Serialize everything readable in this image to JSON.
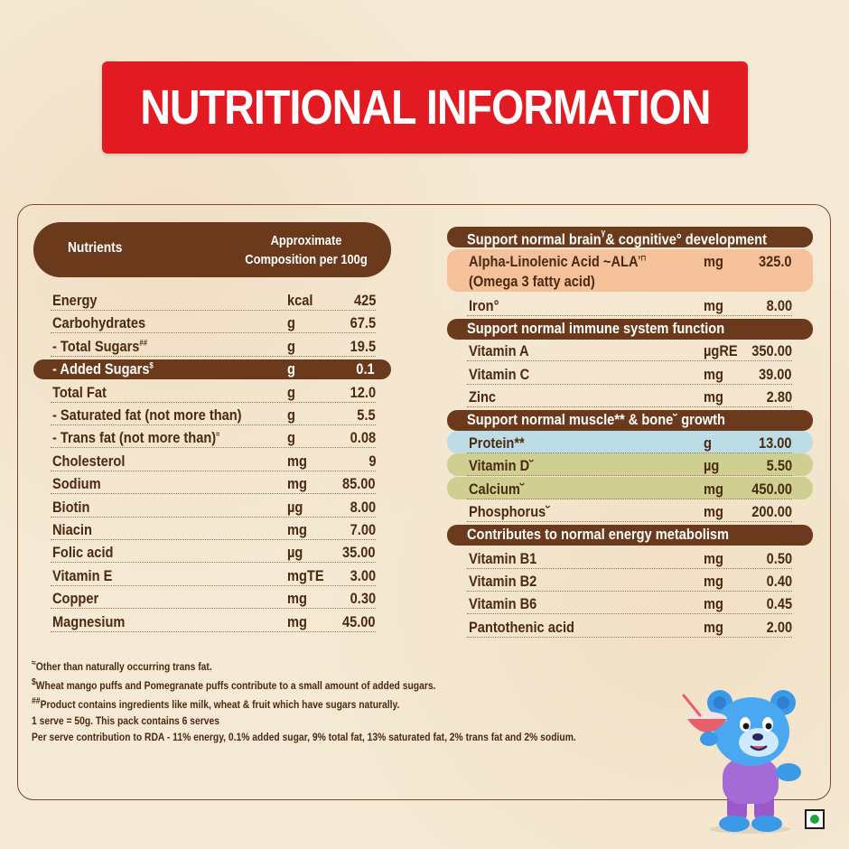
{
  "title": "NUTRITIONAL INFORMATION",
  "left_table": {
    "header_nutrients": "Nutrients",
    "header_comp_line1": "Approximate",
    "header_comp_line2": "Composition per 100g",
    "rows": [
      {
        "name": "Energy",
        "unit": "kcal",
        "value": "425"
      },
      {
        "name": "Carbohydrates",
        "unit": "g",
        "value": "67.5"
      },
      {
        "name": "- Total Sugars",
        "sup": "##",
        "unit": "g",
        "value": "19.5"
      },
      {
        "name": "- Added Sugars",
        "sup": "$",
        "unit": "g",
        "value": "0.1"
      },
      {
        "name": "Total Fat",
        "unit": "g",
        "value": "12.0"
      },
      {
        "name": "- Saturated fat (not more than)",
        "unit": "g",
        "value": "5.5"
      },
      {
        "name": "- Trans fat (not more than)",
        "sup": "≈",
        "unit": "g",
        "value": "0.08"
      },
      {
        "name": "Cholesterol",
        "unit": "mg",
        "value": "9"
      },
      {
        "name": "Sodium",
        "unit": "mg",
        "value": "85.00"
      },
      {
        "name": "Biotin",
        "unit": "µg",
        "value": "8.00"
      },
      {
        "name": "Niacin",
        "unit": "mg",
        "value": "7.00"
      },
      {
        "name": "Folic acid",
        "unit": "µg",
        "value": "35.00"
      },
      {
        "name": "Vitamin E",
        "unit": "mgTE",
        "value": "3.00"
      },
      {
        "name": "Copper",
        "unit": "mg",
        "value": "0.30"
      },
      {
        "name": "Magnesium",
        "unit": "mg",
        "value": "45.00"
      }
    ]
  },
  "right_table": {
    "sections": [
      {
        "header": "Support normal brain",
        "header_sup": "ᵞ",
        "header_rest": "& cognitive° development",
        "rows": [
          {
            "name": "Alpha-Linolenic Acid ~ALA",
            "sup": "ᵞ⊓",
            "name2": "(Omega 3 fatty acid)",
            "unit": "mg",
            "value": "325.0"
          },
          {
            "name": "Iron°",
            "unit": "mg",
            "value": "8.00"
          }
        ]
      },
      {
        "header": "Support normal immune system function",
        "rows": [
          {
            "name": "Vitamin A",
            "unit": "µgRE",
            "value": "350.00"
          },
          {
            "name": "Vitamin C",
            "unit": "mg",
            "value": "39.00"
          },
          {
            "name": "Zinc",
            "unit": "mg",
            "value": "2.80"
          }
        ]
      },
      {
        "header": "Support normal muscle** & bone˘ growth",
        "rows": [
          {
            "name": "Protein**",
            "unit": "g",
            "value": "13.00"
          },
          {
            "name": "Vitamin D˘",
            "unit": "µg",
            "value": "5.50"
          },
          {
            "name": "Calcium˘",
            "unit": "mg",
            "value": "450.00"
          },
          {
            "name": "Phosphorus˘",
            "unit": "mg",
            "value": "200.00"
          }
        ]
      },
      {
        "header": "Contributes to normal energy metabolism",
        "rows": [
          {
            "name": "Vitamin B1",
            "unit": "mg",
            "value": "0.50"
          },
          {
            "name": "Vitamin B2",
            "unit": "mg",
            "value": "0.40"
          },
          {
            "name": "Vitamin B6",
            "unit": "mg",
            "value": "0.45"
          },
          {
            "name": "Pantothenic acid",
            "unit": "mg",
            "value": "2.00"
          }
        ]
      }
    ]
  },
  "footnotes": {
    "f1_sup": "≈",
    "f1": "Other than naturally occurring trans fat.",
    "f2_sup": "$",
    "f2": "Wheat mango puffs and Pomegranate puffs contribute to a small amount of added sugars.",
    "f3_sup": "##",
    "f3": "Product contains ingredients like milk, wheat & fruit which have sugars naturally.",
    "f4": "1 serve = 50g. This pack contains 6 serves",
    "f5": "Per serve contribution to RDA - 11% energy, 0.1% added sugar, 9% total fat, 13% saturated fat, 2% trans fat and 2% sodium."
  },
  "colors": {
    "banner": "#e21b23",
    "header_brown": "#6b3a1c",
    "background": "#f6ead6",
    "highlight_orange": "#f4c19a",
    "highlight_blue": "#bcdde6",
    "highlight_olive": "#cfcf92",
    "veg_green": "#1fa33a"
  },
  "icons": {
    "mascot": "teddy-bear-mascot-with-bowl",
    "veg": "vegetarian-mark-icon"
  }
}
